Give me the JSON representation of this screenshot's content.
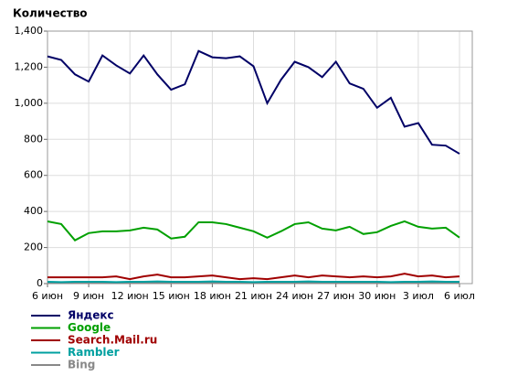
{
  "chart_data": {
    "type": "line",
    "title": "Количество",
    "categories": [
      "6 июн",
      null,
      null,
      "9 июн",
      null,
      null,
      "12 июн",
      null,
      null,
      "15 июн",
      null,
      null,
      "18 июн",
      null,
      null,
      "21 июн",
      null,
      null,
      "24 июн",
      null,
      null,
      "27 июн",
      null,
      null,
      "30 июн",
      null,
      null,
      "3 июл",
      null,
      null,
      "6 июл"
    ],
    "series": [
      {
        "name": "Яндекс",
        "color": "#000066",
        "values": [
          1260,
          1240,
          1160,
          1120,
          1265,
          1210,
          1165,
          1265,
          1160,
          1075,
          1105,
          1290,
          1255,
          1250,
          1260,
          1205,
          1000,
          1130,
          1230,
          1200,
          1145,
          1230,
          1110,
          1080,
          975,
          1030,
          870,
          890,
          770,
          765,
          720
        ]
      },
      {
        "name": "Google",
        "color": "#00a000",
        "values": [
          345,
          330,
          240,
          280,
          290,
          290,
          295,
          310,
          300,
          250,
          260,
          340,
          340,
          330,
          310,
          290,
          255,
          290,
          330,
          340,
          305,
          295,
          315,
          275,
          285,
          320,
          345,
          315,
          305,
          310,
          255
        ]
      },
      {
        "name": "Search.Mail.ru",
        "color": "#a00000",
        "values": [
          35,
          35,
          35,
          35,
          35,
          40,
          25,
          40,
          50,
          35,
          35,
          40,
          45,
          35,
          25,
          30,
          25,
          35,
          45,
          35,
          45,
          40,
          35,
          40,
          35,
          40,
          55,
          40,
          45,
          35,
          40
        ]
      },
      {
        "name": "Rambler",
        "color": "#00a0a0",
        "values": [
          10,
          8,
          10,
          10,
          10,
          8,
          10,
          10,
          12,
          10,
          10,
          10,
          12,
          10,
          10,
          8,
          10,
          10,
          10,
          12,
          10,
          10,
          10,
          10,
          10,
          8,
          10,
          10,
          12,
          10,
          10
        ]
      },
      {
        "name": "Bing",
        "color": "#888888",
        "values": [
          3,
          3,
          3,
          3,
          3,
          3,
          3,
          3,
          3,
          3,
          3,
          3,
          3,
          3,
          3,
          3,
          3,
          3,
          3,
          3,
          3,
          3,
          3,
          3,
          3,
          3,
          3,
          3,
          3,
          3,
          3
        ]
      }
    ],
    "ylim": [
      0,
      1400
    ],
    "yticks": [
      0,
      200,
      400,
      600,
      800,
      {
        "value": 1000,
        "label": "1,000"
      },
      {
        "value": 1200,
        "label": "1,200"
      },
      {
        "value": 1400,
        "label": "1,400"
      }
    ],
    "grid": true
  }
}
